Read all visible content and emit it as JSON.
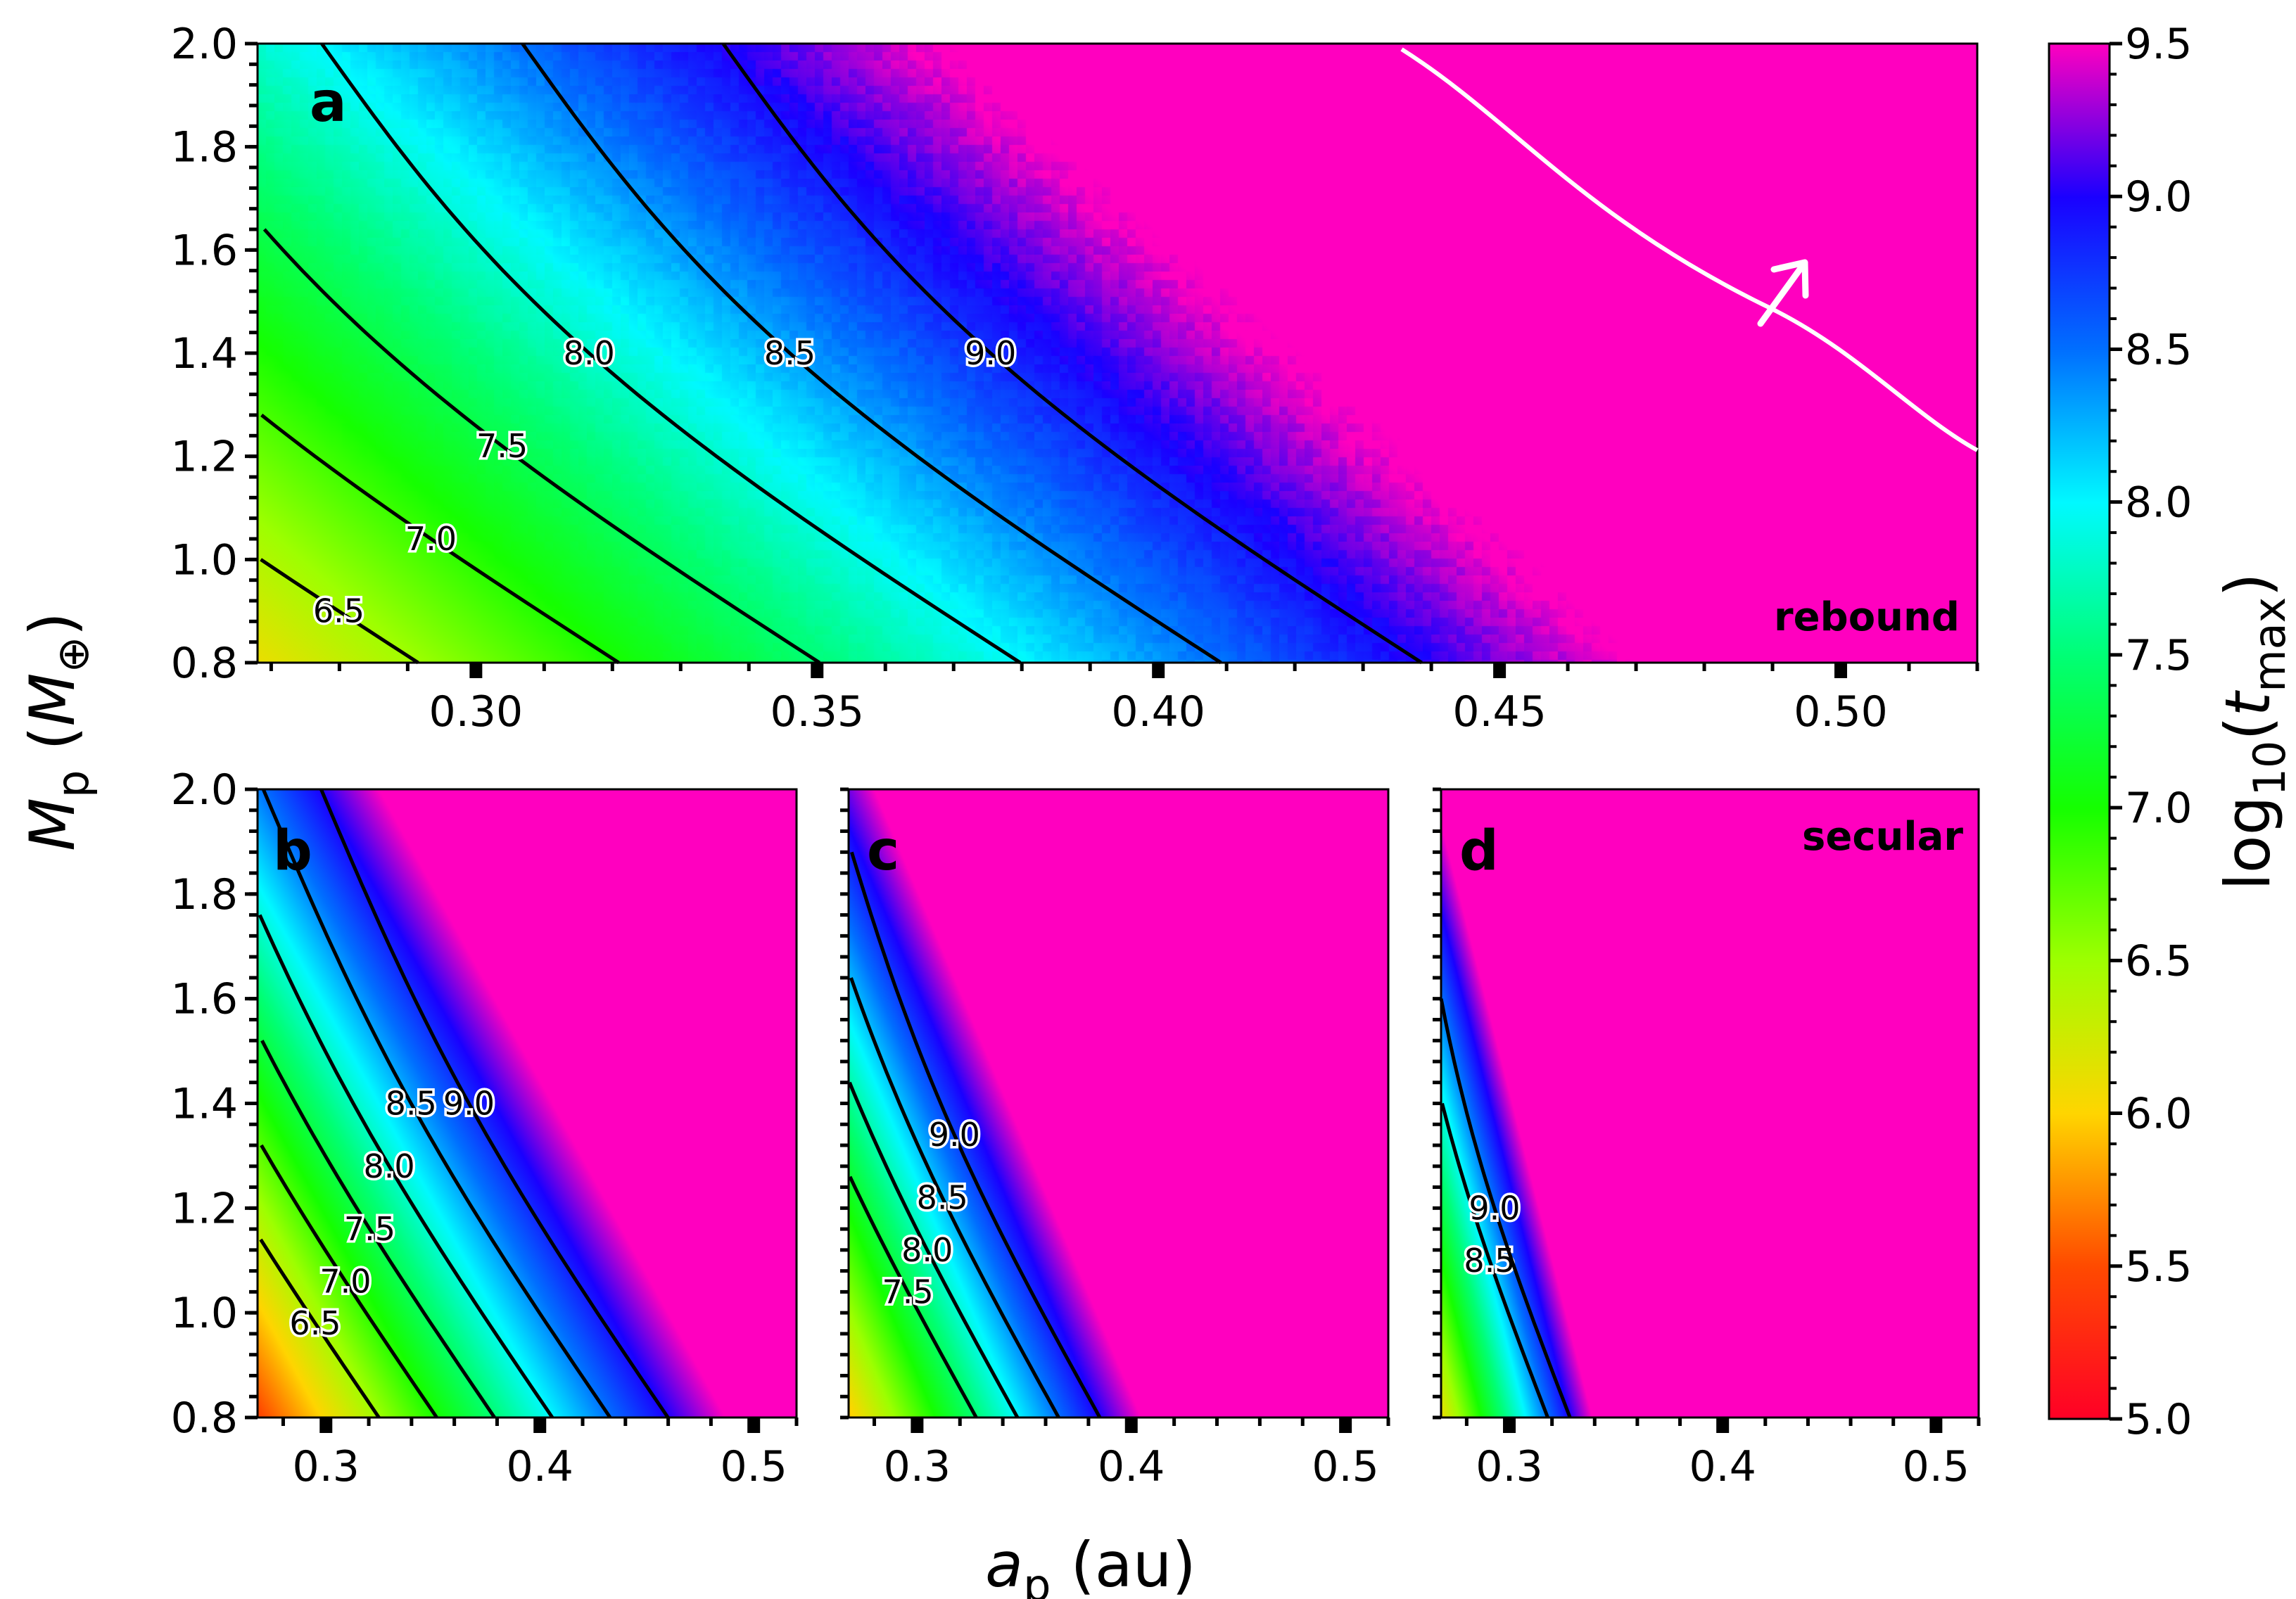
{
  "chart_data": {
    "type": "heatmap",
    "x_axis_label": {
      "base": "a",
      "sub": "p",
      "unit": "(au)"
    },
    "y_axis_label": {
      "base": "M",
      "sub": "p",
      "unit_open": "(",
      "unit_base": "M",
      "unit_sub": "⊕",
      "unit_close": ")"
    },
    "colorbar": {
      "label": {
        "prefix": "log",
        "sub1": "10",
        "open": "(",
        "var": "t",
        "sub2": "max",
        "close": ")"
      },
      "range": [
        5.0,
        9.5
      ],
      "ticks": [
        "5.0",
        "5.5",
        "6.0",
        "6.5",
        "7.0",
        "7.5",
        "8.0",
        "8.5",
        "9.0",
        "9.5"
      ],
      "colormap": "gist_rainbow (red→yellow→green→cyan→blue→magenta)"
    },
    "panels": [
      {
        "id": "a",
        "label": "a",
        "tag": "rebound",
        "xlim": [
          0.268,
          0.52
        ],
        "ylim": [
          0.8,
          2.0
        ],
        "xticks": [
          "0.30",
          "0.35",
          "0.40",
          "0.45",
          "0.50"
        ],
        "yticks": [
          "0.8",
          "1.0",
          "1.2",
          "1.4",
          "1.6",
          "1.8",
          "2.0"
        ],
        "model": {
          "f0": 6.1,
          "A": 17.0,
          "B": 1.45,
          "noise": true
        },
        "contour_labels": [
          "6.5",
          "7.0",
          "7.5",
          "8.0",
          "8.5",
          "9.0"
        ],
        "marker_line": {
          "desc": "white boundary line with arrow pointing toward longer times"
        }
      },
      {
        "id": "b",
        "label": "b",
        "tag": "",
        "xlim": [
          0.268,
          0.52
        ],
        "ylim": [
          0.8,
          2.0
        ],
        "xticks": [
          "0.3",
          "0.4",
          "0.5"
        ],
        "yticks": [
          "0.8",
          "1.0",
          "1.2",
          "1.4",
          "1.6",
          "1.8",
          "2.0"
        ],
        "model": {
          "f0": 5.45,
          "A": 18.5,
          "B": 2.5,
          "noise": false
        },
        "contour_labels": [
          "6.5",
          "7.0",
          "7.5",
          "8.0",
          "8.5",
          "9.0"
        ]
      },
      {
        "id": "c",
        "label": "c",
        "tag": "",
        "xlim": [
          0.268,
          0.52
        ],
        "ylim": [
          0.8,
          2.0
        ],
        "xticks": [
          "0.3",
          "0.4",
          "0.5"
        ],
        "yticks": [],
        "model": {
          "f0": 5.95,
          "A": 26.0,
          "B": 2.7,
          "noise": false
        },
        "contour_labels": [
          "7.5",
          "8.0",
          "8.5",
          "9.0"
        ]
      },
      {
        "id": "d",
        "label": "d",
        "tag": "secular",
        "xlim": [
          0.268,
          0.52
        ],
        "ylim": [
          0.8,
          2.0
        ],
        "xticks": [
          "0.3",
          "0.4",
          "0.5"
        ],
        "yticks": [],
        "model": {
          "f0": 6.1,
          "A": 48.0,
          "B": 3.0,
          "noise": false
        },
        "contour_labels": [
          "8.5",
          "9.0"
        ]
      }
    ]
  }
}
